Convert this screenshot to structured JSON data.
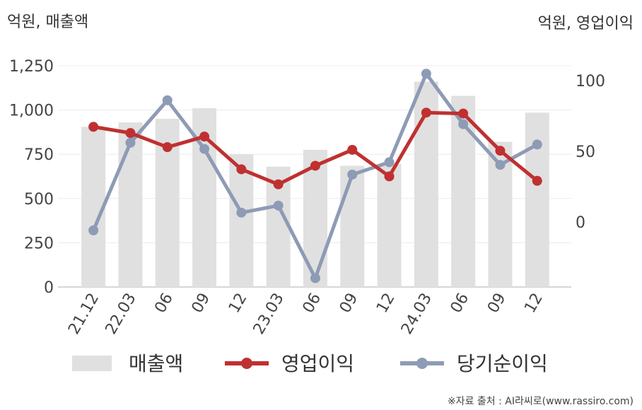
{
  "chart_data": {
    "type": "bar",
    "left_axis_unit": "억원, 매출액",
    "right_axis_unit": "억원, 영업이익",
    "categories": [
      "21.12",
      "22.03",
      "06",
      "09",
      "12",
      "23.03",
      "06",
      "09",
      "12",
      "24.03",
      "06",
      "09",
      "12"
    ],
    "left_ylim": [
      0,
      1250
    ],
    "left_ticks": [
      0,
      250,
      500,
      750,
      "1,000",
      "1,250"
    ],
    "right_ticks": [
      0,
      50,
      100
    ],
    "grid": true,
    "legend_position": "bottom",
    "series": [
      {
        "name": "매출액",
        "type": "bar",
        "axis": "left",
        "color": "#e0e0e0",
        "values": [
          905,
          930,
          950,
          1010,
          750,
          680,
          775,
          685,
          695,
          1160,
          1080,
          820,
          985
        ]
      },
      {
        "name": "영업이익",
        "type": "line",
        "axis": "left",
        "color": "#c03030",
        "values": [
          905,
          870,
          790,
          850,
          665,
          580,
          685,
          775,
          625,
          985,
          980,
          770,
          600
        ]
      },
      {
        "name": "당기순이익",
        "type": "line",
        "axis": "left",
        "color": "#8e9bb5",
        "values": [
          320,
          815,
          1055,
          780,
          420,
          460,
          50,
          635,
          705,
          1205,
          920,
          690,
          805
        ]
      }
    ]
  },
  "source_note": "※자료 출처 : AI라씨로(www.rassiro.com)"
}
